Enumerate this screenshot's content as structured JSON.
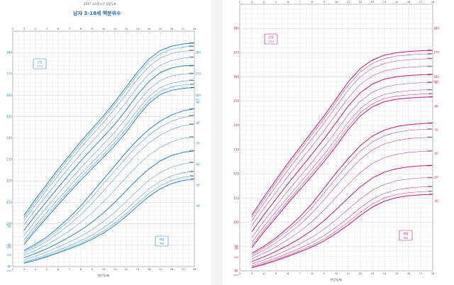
{
  "header": {
    "left_caption": "2017 소아청소년 성장도표",
    "left_title": "남자 3-18세 백분위수"
  },
  "colors": {
    "boy": "#2787c9",
    "girl": "#c2187c"
  },
  "chart_data": [
    {
      "type": "line",
      "title": "남자 3-18세 백분위수",
      "xlabel": "만나이(세)",
      "x_ticks": [
        2,
        3,
        4,
        5,
        6,
        7,
        8,
        9,
        10,
        11,
        12,
        13,
        14,
        15,
        16,
        17,
        18
      ],
      "height": {
        "label": "신장",
        "unit": "(cm)",
        "ylim": [
          80,
          190
        ],
        "left_ticks": [
          80,
          90,
          100,
          110,
          120,
          130,
          140,
          150,
          160,
          170,
          180
        ],
        "right_ticks": [
          160,
          170,
          180
        ],
        "x": [
          3,
          4,
          5,
          6,
          7,
          8,
          9,
          10,
          11,
          12,
          13,
          14,
          15,
          16,
          17,
          18
        ],
        "series": [
          {
            "name": "97th",
            "values": [
              104.0,
              111.5,
              118.5,
              125.5,
              132.0,
              138.5,
              144.5,
              150.5,
              157.0,
              164.0,
              171.0,
              177.0,
              181.0,
              183.0,
              184.0,
              184.5
            ]
          },
          {
            "name": "95th",
            "values": [
              102.8,
              110.3,
              117.3,
              124.3,
              130.8,
              137.3,
              143.3,
              149.3,
              155.8,
              162.8,
              169.8,
              175.6,
              179.6,
              181.6,
              182.6,
              183.1
            ]
          },
          {
            "name": "90th",
            "values": [
              101.5,
              108.8,
              115.8,
              122.6,
              129.2,
              135.6,
              141.6,
              147.4,
              153.7,
              160.6,
              167.7,
              173.5,
              177.5,
              179.6,
              180.6,
              181.1
            ]
          },
          {
            "name": "75th",
            "values": [
              99.5,
              106.6,
              113.4,
              120.1,
              126.5,
              132.7,
              138.6,
              144.2,
              150.2,
              156.9,
              164.0,
              170.0,
              174.1,
              176.3,
              177.4,
              177.9
            ]
          },
          {
            "name": "50th",
            "values": [
              97.0,
              104.0,
              110.5,
              117.0,
              123.3,
              129.4,
              135.2,
              140.8,
              146.5,
              153.2,
              160.4,
              166.5,
              170.7,
              172.8,
              173.8,
              174.0
            ]
          },
          {
            "name": "25th",
            "values": [
              94.5,
              101.4,
              107.8,
              114.0,
              120.2,
              126.2,
              131.8,
              137.2,
              142.8,
              149.4,
              156.6,
              162.8,
              167.0,
              169.1,
              170.0,
              170.3
            ]
          },
          {
            "name": "10th",
            "values": [
              92.5,
              99.2,
              105.4,
              111.5,
              117.5,
              123.3,
              128.8,
              134.2,
              139.7,
              146.2,
              153.3,
              159.5,
              163.7,
              165.7,
              166.7,
              167.1
            ]
          },
          {
            "name": "5th",
            "values": [
              91.2,
              97.8,
              103.9,
              110.0,
              115.9,
              121.6,
              127.1,
              132.4,
              137.9,
              144.3,
              151.4,
              157.7,
              161.9,
              163.9,
              164.9,
              165.2
            ]
          },
          {
            "name": "3rd",
            "values": [
              90.3,
              96.8,
              102.9,
              108.9,
              114.7,
              120.4,
              125.8,
              131.1,
              136.6,
              142.9,
              150.0,
              156.3,
              160.4,
              162.4,
              163.3,
              163.7
            ]
          }
        ]
      },
      "weight": {
        "label": "체중",
        "unit": "(kg)",
        "ylim": [
          10,
          100
        ],
        "right_ticks": [
          40,
          50,
          60,
          70,
          80,
          90
        ],
        "left_ticks": [
          20,
          30
        ],
        "x": [
          3,
          4,
          5,
          6,
          7,
          8,
          9,
          10,
          11,
          12,
          13,
          14,
          15,
          16,
          17,
          18
        ],
        "series": [
          {
            "name": "97th",
            "values": [
              18.5,
              21.5,
              25.0,
              29.5,
              34.5,
              40.0,
              46.5,
              53.0,
              59.5,
              66.0,
              72.0,
              77.0,
              81.0,
              84.0,
              86.0,
              87.0
            ]
          },
          {
            "name": "95th",
            "values": [
              18.0,
              20.8,
              24.2,
              28.4,
              33.0,
              38.3,
              44.3,
              50.7,
              57.0,
              63.3,
              69.3,
              74.3,
              78.2,
              81.0,
              82.8,
              83.8
            ]
          },
          {
            "name": "90th",
            "values": [
              17.2,
              19.9,
              23.0,
              26.8,
              31.0,
              35.8,
              41.3,
              47.3,
              53.4,
              59.6,
              65.5,
              70.5,
              74.3,
              77.0,
              78.8,
              79.6
            ]
          },
          {
            "name": "75th",
            "values": [
              16.2,
              18.5,
              21.2,
              24.4,
              28.0,
              32.0,
              36.8,
              42.1,
              47.8,
              53.8,
              59.6,
              64.6,
              68.4,
              71.0,
              72.6,
              73.4
            ]
          },
          {
            "name": "50th",
            "values": [
              15.0,
              17.0,
              19.3,
              22.0,
              25.0,
              28.3,
              32.2,
              36.7,
              41.8,
              47.4,
              53.0,
              57.9,
              61.8,
              64.4,
              65.9,
              66.7
            ]
          },
          {
            "name": "25th",
            "values": [
              13.9,
              15.7,
              17.7,
              20.1,
              22.6,
              25.3,
              28.6,
              32.5,
              37.0,
              42.2,
              47.5,
              52.4,
              56.2,
              58.8,
              60.3,
              61.1
            ]
          },
          {
            "name": "10th",
            "values": [
              13.1,
              14.6,
              16.5,
              18.6,
              20.8,
              23.2,
              26.0,
              29.5,
              33.5,
              38.3,
              43.4,
              48.2,
              52.0,
              54.5,
              56.0,
              56.8
            ]
          },
          {
            "name": "5th",
            "values": [
              12.6,
              14.1,
              15.8,
              17.8,
              19.9,
              22.1,
              24.7,
              27.9,
              31.7,
              36.3,
              41.3,
              46.0,
              49.8,
              52.3,
              53.8,
              54.6
            ]
          },
          {
            "name": "3rd",
            "values": [
              12.3,
              13.7,
              15.4,
              17.3,
              19.3,
              21.4,
              23.9,
              26.9,
              30.6,
              35.0,
              40.0,
              44.6,
              48.3,
              50.8,
              52.3,
              53.1
            ]
          }
        ]
      }
    },
    {
      "type": "line",
      "xlabel": "만나이(세)",
      "x_ticks": [
        2,
        3,
        4,
        5,
        6,
        7,
        8,
        9,
        10,
        11,
        12,
        13,
        14,
        15,
        16,
        17,
        18
      ],
      "height": {
        "label": "신장",
        "unit": "(cm)",
        "ylim": [
          80,
          190
        ],
        "left_ticks": [
          80,
          90,
          100,
          110,
          120,
          130,
          140,
          150,
          160,
          170,
          180
        ],
        "right_ticks": [
          160,
          170,
          180
        ],
        "x": [
          3,
          4,
          5,
          6,
          7,
          8,
          9,
          10,
          11,
          12,
          13,
          14,
          15,
          16,
          17,
          18
        ],
        "series": [
          {
            "name": "97th",
            "values": [
              103.0,
              110.5,
              117.5,
              124.5,
              131.0,
              137.5,
              144.0,
              151.0,
              158.0,
              163.5,
              167.0,
              169.0,
              170.0,
              170.5,
              170.8,
              171.0
            ]
          },
          {
            "name": "95th",
            "values": [
              102.0,
              109.4,
              116.4,
              123.3,
              129.8,
              136.3,
              142.8,
              149.8,
              156.6,
              162.1,
              165.6,
              167.6,
              168.6,
              169.1,
              169.4,
              169.6
            ]
          },
          {
            "name": "90th",
            "values": [
              100.6,
              107.9,
              114.8,
              121.6,
              128.1,
              134.5,
              141.0,
              147.9,
              154.6,
              160.1,
              163.6,
              165.6,
              166.6,
              167.1,
              167.4,
              167.6
            ]
          },
          {
            "name": "75th",
            "values": [
              98.6,
              105.7,
              112.4,
              119.0,
              125.3,
              131.5,
              137.9,
              144.7,
              151.4,
              157.0,
              160.5,
              162.5,
              163.5,
              164.0,
              164.3,
              164.5
            ]
          },
          {
            "name": "50th",
            "values": [
              96.2,
              103.1,
              109.6,
              116.0,
              122.1,
              128.2,
              134.5,
              141.2,
              148.0,
              153.5,
              157.1,
              159.1,
              160.1,
              160.6,
              160.9,
              161.1
            ]
          },
          {
            "name": "25th",
            "values": [
              93.7,
              100.5,
              106.8,
              113.0,
              119.0,
              124.9,
              131.1,
              137.7,
              144.5,
              150.0,
              153.7,
              155.8,
              156.8,
              157.3,
              157.6,
              157.8
            ]
          },
          {
            "name": "10th",
            "values": [
              91.8,
              98.3,
              104.4,
              110.5,
              116.3,
              122.1,
              128.1,
              134.6,
              141.4,
              147.0,
              150.7,
              152.8,
              153.8,
              154.3,
              154.6,
              154.8
            ]
          },
          {
            "name": "5th",
            "values": [
              90.5,
              96.9,
              102.9,
              109.0,
              114.7,
              120.4,
              126.4,
              132.8,
              139.6,
              145.2,
              148.9,
              151.1,
              152.1,
              152.6,
              152.9,
              153.1
            ]
          },
          {
            "name": "3rd",
            "values": [
              89.6,
              96.0,
              101.9,
              107.9,
              113.6,
              119.2,
              125.1,
              131.5,
              138.3,
              143.9,
              147.7,
              149.8,
              150.8,
              151.3,
              151.6,
              151.8
            ]
          }
        ]
      },
      "weight": {
        "label": "체중",
        "unit": "(kg)",
        "ylim": [
          10,
          100
        ],
        "right_ticks": [
          40,
          50,
          60,
          70,
          80,
          90
        ],
        "left_ticks": [
          20
        ],
        "x": [
          3,
          4,
          5,
          6,
          7,
          8,
          9,
          10,
          11,
          12,
          13,
          14,
          15,
          16,
          17,
          18
        ],
        "series": [
          {
            "name": "97th",
            "values": [
              18.0,
              21.0,
              24.5,
              28.8,
              33.5,
              39.0,
              45.5,
              52.0,
              58.0,
              63.5,
              67.5,
              70.0,
              71.5,
              72.3,
              72.7,
              73.0
            ]
          },
          {
            "name": "95th",
            "values": [
              17.4,
              20.3,
              23.6,
              27.6,
              32.0,
              37.3,
              43.5,
              49.8,
              55.7,
              61.1,
              65.0,
              67.6,
              69.1,
              69.9,
              70.3,
              70.5
            ]
          },
          {
            "name": "90th",
            "values": [
              16.7,
              19.3,
              22.4,
              26.1,
              30.1,
              35.0,
              40.6,
              46.6,
              52.4,
              57.7,
              61.6,
              64.2,
              65.6,
              66.4,
              66.8,
              67.0
            ]
          },
          {
            "name": "75th",
            "values": [
              15.7,
              18.0,
              20.7,
              23.8,
              27.3,
              31.4,
              36.3,
              41.7,
              47.1,
              52.1,
              55.9,
              58.4,
              59.8,
              60.6,
              61.0,
              61.2
            ]
          },
          {
            "name": "50th",
            "values": [
              14.5,
              16.5,
              18.8,
              21.4,
              24.3,
              27.7,
              31.8,
              36.5,
              41.4,
              46.1,
              49.8,
              52.3,
              53.7,
              54.5,
              54.9,
              55.1
            ]
          },
          {
            "name": "25th",
            "values": [
              13.5,
              15.2,
              17.2,
              19.5,
              22.0,
              24.8,
              28.2,
              32.2,
              36.6,
              41.0,
              44.6,
              47.1,
              48.6,
              49.4,
              49.8,
              50.0
            ]
          },
          {
            "name": "10th",
            "values": [
              12.7,
              14.2,
              16.0,
              18.0,
              20.2,
              22.6,
              25.5,
              29.0,
              33.0,
              37.2,
              40.8,
              43.3,
              44.8,
              45.6,
              46.0,
              46.2
            ]
          },
          {
            "name": "5th",
            "values": [
              12.2,
              13.7,
              15.3,
              17.2,
              19.2,
              21.4,
              24.1,
              27.4,
              31.2,
              35.3,
              38.8,
              41.3,
              42.8,
              43.6,
              44.0,
              44.2
            ]
          },
          {
            "name": "3rd",
            "values": [
              11.9,
              13.3,
              14.9,
              16.7,
              18.6,
              20.7,
              23.2,
              26.4,
              30.0,
              34.0,
              37.5,
              40.0,
              41.5,
              42.3,
              42.7,
              42.9
            ]
          }
        ]
      }
    }
  ]
}
